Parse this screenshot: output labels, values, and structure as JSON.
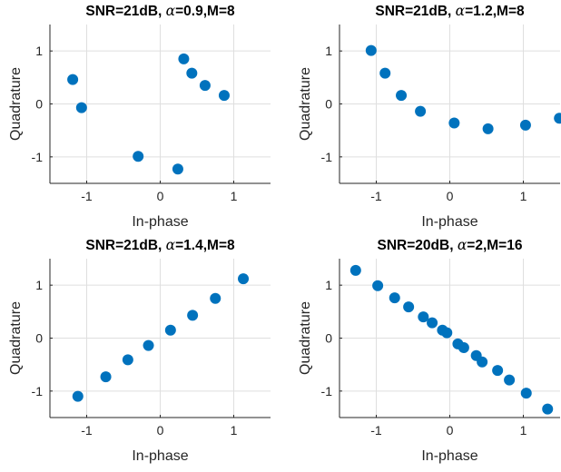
{
  "colors": {
    "marker": "#0072BD",
    "grid": "#dfdfdf",
    "axis": "#262626"
  },
  "chart_data": [
    {
      "type": "scatter",
      "title_parts": {
        "prefix": "SNR=21dB, ",
        "symbol": "α",
        "suffix": "=0.9,M=8"
      },
      "xlabel": "In-phase",
      "ylabel": "Quadrature",
      "xlim": [
        -1.5,
        1.5
      ],
      "ylim": [
        -1.5,
        1.5
      ],
      "xticks": [
        -1,
        0,
        1
      ],
      "yticks": [
        -1,
        0,
        1
      ],
      "xtick_labels": [
        "-1",
        "0",
        "1"
      ],
      "ytick_labels": [
        "-1",
        "0",
        "1"
      ],
      "grid": true,
      "x": [
        -1.19,
        -1.07,
        -0.3,
        0.24,
        0.32,
        0.43,
        0.61,
        0.87
      ],
      "y": [
        0.46,
        -0.07,
        -0.99,
        -1.23,
        0.85,
        0.58,
        0.35,
        0.16
      ]
    },
    {
      "type": "scatter",
      "title_parts": {
        "prefix": "SNR=21dB, ",
        "symbol": "α",
        "suffix": "=1.2,M=8"
      },
      "xlabel": "In-phase",
      "ylabel": "Quadrature",
      "xlim": [
        -1.5,
        1.5
      ],
      "ylim": [
        -1.5,
        1.5
      ],
      "xticks": [
        -1,
        0,
        1
      ],
      "yticks": [
        -1,
        0,
        1
      ],
      "xtick_labels": [
        "-1",
        "0",
        "1"
      ],
      "ytick_labels": [
        "-1",
        "0",
        "1"
      ],
      "grid": true,
      "x": [
        -1.07,
        -0.88,
        -0.66,
        -0.4,
        0.06,
        0.52,
        1.03,
        1.49
      ],
      "y": [
        1.01,
        0.58,
        0.16,
        -0.14,
        -0.36,
        -0.47,
        -0.4,
        -0.27
      ]
    },
    {
      "type": "scatter",
      "title_parts": {
        "prefix": "SNR=21dB, ",
        "symbol": "α",
        "suffix": "=1.4,M=8"
      },
      "xlabel": "In-phase",
      "ylabel": "Quadrature",
      "xlim": [
        -1.5,
        1.5
      ],
      "ylim": [
        -1.5,
        1.5
      ],
      "xticks": [
        -1,
        0,
        1
      ],
      "yticks": [
        -1,
        0,
        1
      ],
      "xtick_labels": [
        "-1",
        "0",
        "1"
      ],
      "ytick_labels": [
        "-1",
        "0",
        "1"
      ],
      "grid": true,
      "x": [
        -1.12,
        -0.74,
        -0.44,
        -0.16,
        0.14,
        0.44,
        0.75,
        1.13
      ],
      "y": [
        -1.1,
        -0.73,
        -0.41,
        -0.14,
        0.15,
        0.43,
        0.75,
        1.12
      ]
    },
    {
      "type": "scatter",
      "title_parts": {
        "prefix": "SNR=20dB, ",
        "symbol": "α",
        "suffix": "=2,M=16"
      },
      "xlabel": "In-phase",
      "ylabel": "Quadrature",
      "xlim": [
        -1.5,
        1.5
      ],
      "ylim": [
        -1.5,
        1.5
      ],
      "xticks": [
        -1,
        0,
        1
      ],
      "yticks": [
        -1,
        0,
        1
      ],
      "xtick_labels": [
        "-1",
        "0",
        "1"
      ],
      "ytick_labels": [
        "-1",
        "0",
        "1"
      ],
      "grid": true,
      "x": [
        -1.28,
        -0.98,
        -0.75,
        -0.56,
        -0.36,
        -0.24,
        -0.1,
        -0.04,
        0.11,
        0.19,
        0.36,
        0.44,
        0.65,
        0.81,
        1.04,
        1.33
      ],
      "y": [
        1.28,
        0.99,
        0.76,
        0.59,
        0.4,
        0.29,
        0.15,
        0.1,
        -0.11,
        -0.18,
        -0.33,
        -0.45,
        -0.61,
        -0.79,
        -1.04,
        -1.34
      ]
    }
  ]
}
